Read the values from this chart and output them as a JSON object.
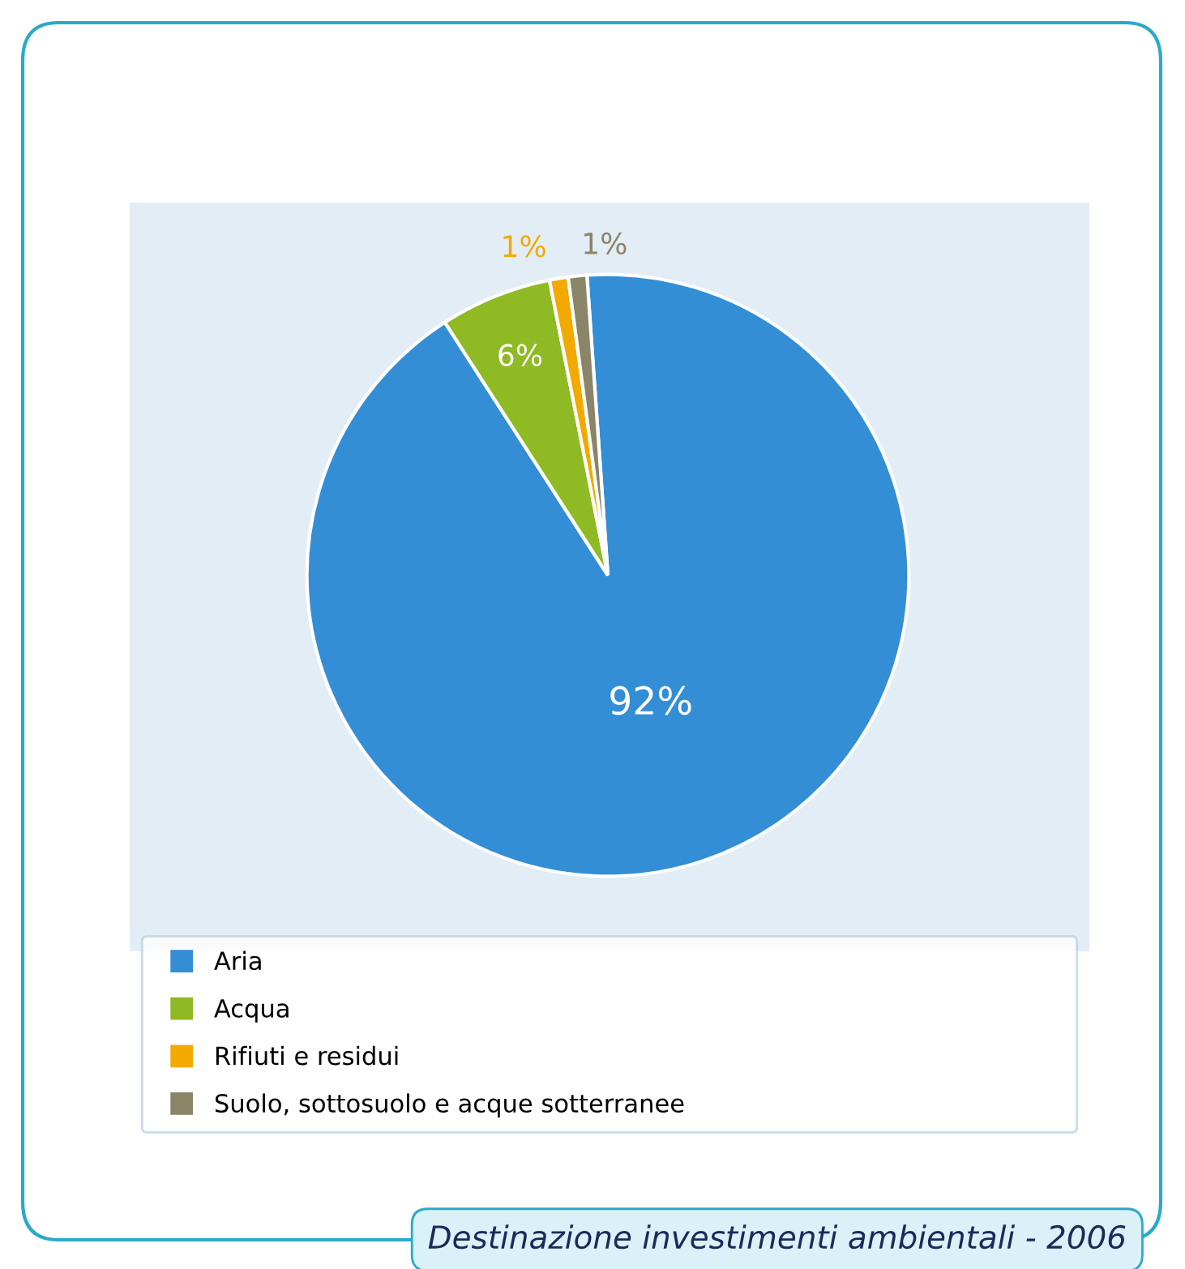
{
  "chart_data": {
    "type": "pie",
    "title": "Destinazione investimenti ambientali - 2006",
    "categories": [
      "Aria",
      "Acqua",
      "Rifiuti e residui",
      "Suolo, sottosuolo e acque sotterranee"
    ],
    "values": [
      92,
      6,
      1,
      1
    ],
    "colors": [
      "#338ed6",
      "#8fba24",
      "#f2a900",
      "#8a8468"
    ],
    "value_labels": [
      "92%",
      "6%",
      "1%",
      "1%"
    ],
    "legend": "bottom"
  }
}
